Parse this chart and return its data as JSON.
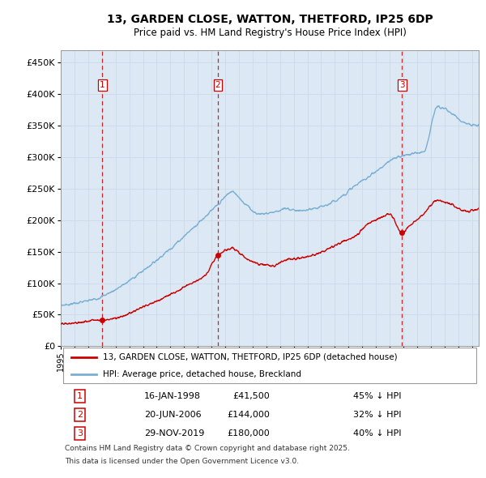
{
  "title_line1": "13, GARDEN CLOSE, WATTON, THETFORD, IP25 6DP",
  "title_line2": "Price paid vs. HM Land Registry's House Price Index (HPI)",
  "legend_label_red": "13, GARDEN CLOSE, WATTON, THETFORD, IP25 6DP (detached house)",
  "legend_label_blue": "HPI: Average price, detached house, Breckland",
  "ytick_values": [
    0,
    50000,
    100000,
    150000,
    200000,
    250000,
    300000,
    350000,
    400000,
    450000
  ],
  "ylim": [
    0,
    470000
  ],
  "xlim_start": 1995.0,
  "xlim_end": 2025.5,
  "color_red": "#cc0000",
  "color_blue": "#7aafd4",
  "color_grid": "#ccd9e8",
  "color_background": "#ffffff",
  "color_plot_bg": "#dce9f5",
  "transactions": [
    {
      "num": 1,
      "date": "16-JAN-1998",
      "price": 41500,
      "pct": "45% ↓ HPI",
      "year": 1998.04
    },
    {
      "num": 2,
      "date": "20-JUN-2006",
      "price": 144000,
      "pct": "32% ↓ HPI",
      "year": 2006.47
    },
    {
      "num": 3,
      "date": "29-NOV-2019",
      "price": 180000,
      "pct": "40% ↓ HPI",
      "year": 2019.91
    }
  ],
  "footer_line1": "Contains HM Land Registry data © Crown copyright and database right 2025.",
  "footer_line2": "This data is licensed under the Open Government Licence v3.0.",
  "blue_anchors_x": [
    1995.0,
    1996.0,
    1997.5,
    1999.0,
    2001.0,
    2003.0,
    2005.0,
    2006.5,
    2007.5,
    2008.5,
    2009.5,
    2010.5,
    2011.5,
    2012.5,
    2013.5,
    2014.5,
    2015.5,
    2016.5,
    2017.5,
    2018.5,
    2019.5,
    2020.5,
    2021.5,
    2022.5,
    2023.5,
    2024.5,
    2025.5
  ],
  "blue_anchors_y": [
    65000,
    68000,
    75000,
    90000,
    120000,
    155000,
    195000,
    225000,
    245000,
    225000,
    210000,
    213000,
    218000,
    215000,
    218000,
    225000,
    238000,
    255000,
    270000,
    285000,
    300000,
    305000,
    310000,
    380000,
    370000,
    355000,
    350000
  ],
  "red_anchors_x": [
    1995.0,
    1996.5,
    1997.5,
    1998.04,
    1999.5,
    2001.0,
    2003.0,
    2004.5,
    2005.5,
    2006.47,
    2007.5,
    2008.5,
    2009.5,
    2010.5,
    2011.5,
    2012.5,
    2013.5,
    2014.5,
    2015.5,
    2016.5,
    2017.5,
    2018.5,
    2019.0,
    2019.91,
    2020.5,
    2021.5,
    2022.5,
    2023.5,
    2024.5,
    2025.5
  ],
  "red_anchors_y": [
    35000,
    38000,
    42000,
    41500,
    48000,
    62000,
    82000,
    100000,
    112000,
    144000,
    155000,
    140000,
    130000,
    128000,
    138000,
    140000,
    145000,
    155000,
    165000,
    175000,
    195000,
    205000,
    210000,
    180000,
    192000,
    210000,
    232000,
    225000,
    215000,
    218000
  ]
}
